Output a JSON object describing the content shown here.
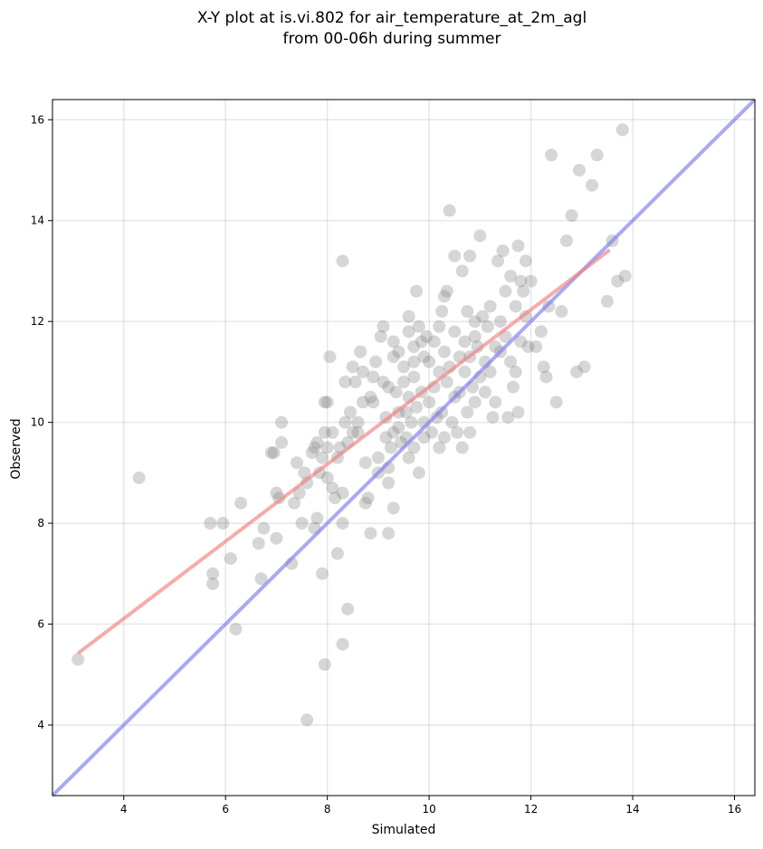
{
  "chart_data": {
    "type": "scatter",
    "title_lines": [
      "X-Y plot at is.vi.802 for air_temperature_at_2m_agl",
      "from 00-06h during summer"
    ],
    "xlabel": "Simulated",
    "ylabel": "Observed",
    "xlim": [
      2.6,
      16.4
    ],
    "ylim": [
      2.6,
      16.4
    ],
    "xticks": [
      "4",
      "6",
      "8",
      "10",
      "12",
      "14",
      "16"
    ],
    "yticks": [
      "4",
      "6",
      "8",
      "10",
      "12",
      "14",
      "16"
    ],
    "grid": true,
    "colors": {
      "points": "#808080",
      "regression_line": "#f08080",
      "identity_line": "#7b7bf0"
    },
    "regression_line": {
      "x": [
        3.1,
        13.55
      ],
      "y": [
        5.42,
        13.42
      ]
    },
    "identity_line": {
      "x": [
        2.6,
        16.4
      ],
      "y": [
        2.6,
        16.4
      ]
    },
    "points": [
      [
        3.1,
        5.3
      ],
      [
        4.3,
        8.9
      ],
      [
        5.7,
        8.0
      ],
      [
        5.95,
        8.0
      ],
      [
        5.75,
        7.0
      ],
      [
        5.75,
        6.8
      ],
      [
        6.1,
        7.3
      ],
      [
        6.2,
        5.9
      ],
      [
        6.3,
        8.4
      ],
      [
        6.65,
        7.6
      ],
      [
        6.75,
        7.9
      ],
      [
        6.7,
        6.9
      ],
      [
        6.9,
        9.4
      ],
      [
        7.0,
        8.6
      ],
      [
        7.0,
        7.7
      ],
      [
        7.05,
        8.5
      ],
      [
        7.1,
        10.0
      ],
      [
        7.1,
        9.6
      ],
      [
        6.95,
        9.4
      ],
      [
        7.3,
        7.2
      ],
      [
        7.35,
        8.4
      ],
      [
        7.4,
        9.2
      ],
      [
        7.45,
        8.6
      ],
      [
        7.5,
        8.0
      ],
      [
        7.55,
        9.0
      ],
      [
        7.6,
        8.8
      ],
      [
        7.7,
        9.4
      ],
      [
        7.75,
        9.5
      ],
      [
        7.8,
        9.6
      ],
      [
        7.8,
        8.1
      ],
      [
        7.75,
        7.9
      ],
      [
        7.85,
        9.0
      ],
      [
        7.9,
        9.3
      ],
      [
        7.9,
        7.0
      ],
      [
        7.95,
        9.8
      ],
      [
        7.95,
        10.4
      ],
      [
        8.0,
        9.5
      ],
      [
        8.0,
        8.9
      ],
      [
        8.05,
        11.3
      ],
      [
        8.0,
        10.4
      ],
      [
        8.1,
        9.8
      ],
      [
        8.1,
        8.7
      ],
      [
        8.15,
        8.5
      ],
      [
        8.2,
        7.4
      ],
      [
        8.2,
        9.3
      ],
      [
        8.25,
        9.5
      ],
      [
        8.3,
        8.6
      ],
      [
        8.3,
        8.0
      ],
      [
        8.35,
        10.8
      ],
      [
        8.35,
        10.0
      ],
      [
        8.4,
        9.6
      ],
      [
        8.45,
        10.2
      ],
      [
        8.5,
        11.1
      ],
      [
        8.5,
        9.8
      ],
      [
        8.55,
        10.8
      ],
      [
        8.6,
        10.0
      ],
      [
        8.6,
        9.8
      ],
      [
        8.65,
        11.4
      ],
      [
        8.7,
        11.0
      ],
      [
        8.7,
        10.4
      ],
      [
        8.75,
        9.2
      ],
      [
        8.75,
        8.4
      ],
      [
        8.8,
        8.5
      ],
      [
        8.85,
        10.5
      ],
      [
        8.85,
        7.8
      ],
      [
        8.9,
        10.4
      ],
      [
        8.9,
        10.9
      ],
      [
        8.95,
        11.2
      ],
      [
        9.0,
        9.0
      ],
      [
        9.0,
        9.3
      ],
      [
        9.05,
        11.7
      ],
      [
        9.1,
        11.9
      ],
      [
        9.1,
        10.8
      ],
      [
        9.15,
        10.1
      ],
      [
        9.15,
        9.7
      ],
      [
        9.2,
        10.7
      ],
      [
        9.2,
        9.1
      ],
      [
        9.2,
        8.8
      ],
      [
        9.25,
        9.5
      ],
      [
        9.3,
        11.6
      ],
      [
        9.3,
        11.3
      ],
      [
        9.3,
        9.8
      ],
      [
        9.3,
        8.3
      ],
      [
        9.35,
        10.6
      ],
      [
        9.4,
        11.4
      ],
      [
        9.4,
        10.2
      ],
      [
        9.4,
        9.9
      ],
      [
        9.45,
        9.6
      ],
      [
        9.5,
        11.1
      ],
      [
        9.5,
        10.8
      ],
      [
        9.55,
        10.2
      ],
      [
        9.55,
        9.7
      ],
      [
        9.6,
        12.1
      ],
      [
        9.6,
        11.8
      ],
      [
        9.6,
        10.5
      ],
      [
        9.6,
        9.3
      ],
      [
        9.65,
        10.0
      ],
      [
        9.7,
        11.5
      ],
      [
        9.7,
        11.2
      ],
      [
        9.7,
        10.9
      ],
      [
        9.7,
        9.5
      ],
      [
        9.75,
        12.6
      ],
      [
        9.75,
        10.3
      ],
      [
        9.8,
        11.9
      ],
      [
        9.8,
        9.0
      ],
      [
        9.85,
        11.6
      ],
      [
        9.85,
        10.6
      ],
      [
        9.9,
        11.3
      ],
      [
        9.9,
        10.0
      ],
      [
        9.9,
        9.7
      ],
      [
        9.95,
        11.7
      ],
      [
        10.0,
        11.2
      ],
      [
        10.0,
        10.4
      ],
      [
        10.05,
        9.8
      ],
      [
        10.1,
        11.6
      ],
      [
        10.1,
        10.7
      ],
      [
        10.15,
        10.1
      ],
      [
        10.2,
        11.9
      ],
      [
        10.2,
        11.0
      ],
      [
        10.2,
        9.5
      ],
      [
        10.25,
        12.2
      ],
      [
        10.25,
        10.2
      ],
      [
        10.3,
        12.5
      ],
      [
        10.3,
        11.4
      ],
      [
        10.3,
        9.7
      ],
      [
        10.35,
        12.6
      ],
      [
        10.35,
        10.8
      ],
      [
        10.4,
        14.2
      ],
      [
        10.4,
        11.1
      ],
      [
        10.45,
        10.0
      ],
      [
        10.5,
        13.3
      ],
      [
        10.5,
        11.8
      ],
      [
        10.5,
        10.5
      ],
      [
        10.55,
        9.8
      ],
      [
        10.6,
        11.3
      ],
      [
        10.6,
        10.6
      ],
      [
        10.65,
        13.0
      ],
      [
        10.65,
        9.5
      ],
      [
        10.7,
        11.6
      ],
      [
        10.7,
        11.0
      ],
      [
        10.75,
        12.2
      ],
      [
        10.75,
        10.2
      ],
      [
        10.8,
        13.3
      ],
      [
        10.8,
        11.3
      ],
      [
        10.8,
        9.8
      ],
      [
        10.85,
        10.7
      ],
      [
        10.9,
        12.0
      ],
      [
        10.9,
        11.7
      ],
      [
        10.9,
        10.4
      ],
      [
        10.95,
        11.5
      ],
      [
        11.0,
        13.7
      ],
      [
        11.0,
        10.9
      ],
      [
        11.05,
        12.1
      ],
      [
        11.1,
        11.2
      ],
      [
        11.1,
        10.6
      ],
      [
        11.15,
        11.9
      ],
      [
        11.2,
        12.3
      ],
      [
        11.2,
        11.0
      ],
      [
        11.25,
        10.1
      ],
      [
        11.3,
        11.5
      ],
      [
        11.3,
        10.4
      ],
      [
        11.35,
        13.2
      ],
      [
        11.4,
        12.0
      ],
      [
        11.4,
        11.4
      ],
      [
        11.45,
        13.4
      ],
      [
        11.5,
        12.6
      ],
      [
        11.5,
        11.7
      ],
      [
        11.55,
        10.1
      ],
      [
        11.6,
        12.9
      ],
      [
        11.6,
        11.2
      ],
      [
        11.65,
        10.7
      ],
      [
        11.7,
        12.3
      ],
      [
        11.7,
        11.0
      ],
      [
        11.75,
        13.5
      ],
      [
        11.75,
        10.2
      ],
      [
        11.8,
        12.8
      ],
      [
        11.8,
        11.6
      ],
      [
        11.85,
        12.6
      ],
      [
        11.9,
        13.2
      ],
      [
        11.9,
        12.1
      ],
      [
        11.95,
        11.5
      ],
      [
        12.0,
        12.8
      ],
      [
        12.1,
        11.5
      ],
      [
        12.2,
        11.8
      ],
      [
        12.25,
        11.1
      ],
      [
        12.3,
        10.9
      ],
      [
        12.35,
        12.3
      ],
      [
        12.5,
        10.4
      ],
      [
        12.6,
        12.2
      ],
      [
        12.4,
        15.3
      ],
      [
        12.7,
        13.6
      ],
      [
        12.8,
        14.1
      ],
      [
        12.9,
        11.0
      ],
      [
        12.95,
        15.0
      ],
      [
        13.05,
        11.1
      ],
      [
        13.2,
        14.7
      ],
      [
        13.3,
        15.3
      ],
      [
        13.5,
        12.4
      ],
      [
        13.6,
        13.6
      ],
      [
        13.7,
        12.8
      ],
      [
        13.85,
        12.9
      ],
      [
        13.8,
        15.8
      ],
      [
        8.3,
        13.2
      ],
      [
        7.95,
        5.2
      ],
      [
        8.3,
        5.6
      ],
      [
        7.6,
        4.1
      ],
      [
        8.4,
        6.3
      ],
      [
        9.2,
        7.8
      ]
    ]
  }
}
